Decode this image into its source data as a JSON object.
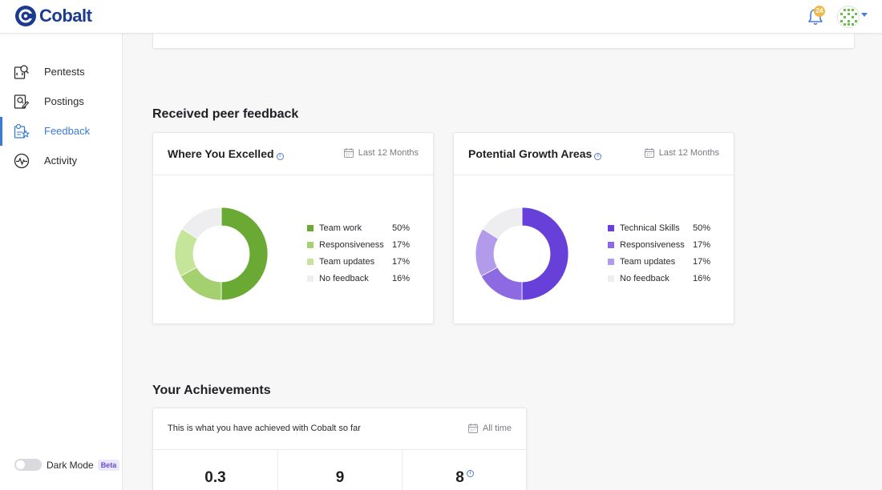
{
  "header": {
    "logo_text": "Cobalt",
    "notification_count": "24",
    "icons": [
      "bell-icon",
      "avatar"
    ]
  },
  "sidebar": {
    "items": [
      {
        "label": "Pentests",
        "icon": "pentests-icon"
      },
      {
        "label": "Postings",
        "icon": "postings-icon"
      },
      {
        "label": "Feedback",
        "icon": "feedback-icon",
        "active": true
      },
      {
        "label": "Activity",
        "icon": "activity-icon"
      }
    ],
    "dark_mode_label": "Dark Mode",
    "beta_label": "Beta"
  },
  "peer_feedback": {
    "section_title": "Received peer feedback",
    "excelled": {
      "title": "Where You Excelled",
      "period": "Last 12 Months",
      "legend": [
        {
          "label": "Team work",
          "pct": "50%",
          "value": 50,
          "color": "#6aa934"
        },
        {
          "label": "Responsiveness",
          "pct": "17%",
          "value": 17,
          "color": "#a5d070"
        },
        {
          "label": "Team updates",
          "pct": "17%",
          "value": 17,
          "color": "#c4e59a"
        },
        {
          "label": "No feedback",
          "pct": "16%",
          "value": 16,
          "color": "#eeeef0"
        }
      ]
    },
    "growth": {
      "title": "Potential Growth Areas",
      "period": "Last 12 Months",
      "legend": [
        {
          "label": "Technical Skills",
          "pct": "50%",
          "value": 50,
          "color": "#6640d8"
        },
        {
          "label": "Responsiveness",
          "pct": "17%",
          "value": 17,
          "color": "#8e6ae2"
        },
        {
          "label": "Team updates",
          "pct": "17%",
          "value": 17,
          "color": "#b39bec"
        },
        {
          "label": "No feedback",
          "pct": "16%",
          "value": 16,
          "color": "#eeeef0"
        }
      ]
    }
  },
  "achievements": {
    "section_title": "Your Achievements",
    "description": "This is what you have achieved with Cobalt so far",
    "period": "All time",
    "stats": [
      "0.3",
      "9",
      "8"
    ]
  }
}
